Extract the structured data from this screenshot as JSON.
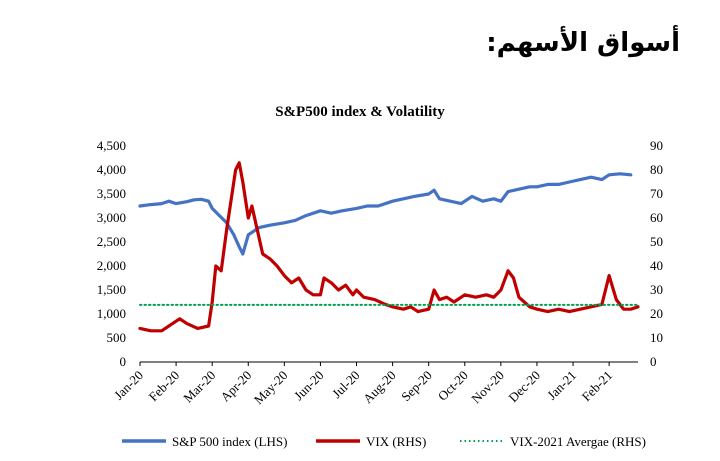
{
  "page": {
    "heading": "أسواق الأسهم:"
  },
  "chart_data": {
    "type": "line",
    "title": "S&P500 index & Volatility",
    "x_labels": [
      "Jan-20",
      "Feb-20",
      "Mar-20",
      "Apr-20",
      "May-20",
      "Jun-20",
      "Jul-20",
      "Aug-20",
      "Sep-20",
      "Oct-20",
      "Nov-20",
      "Dec-20",
      "Jan-21",
      "Feb-21"
    ],
    "y_left": {
      "label": "S&P 500 index (LHS)",
      "range": [
        0,
        4500
      ],
      "ticks": [
        "0",
        "500",
        "1,000",
        "1,500",
        "2,000",
        "2,500",
        "3,000",
        "3,500",
        "4,000",
        "4,500"
      ],
      "tick_values": [
        0,
        500,
        1000,
        1500,
        2000,
        2500,
        3000,
        3500,
        4000,
        4500
      ]
    },
    "y_right": {
      "label": "VIX (RHS)",
      "range": [
        0,
        90
      ],
      "ticks": [
        "0",
        "10",
        "20",
        "30",
        "40",
        "50",
        "60",
        "70",
        "80",
        "90"
      ],
      "tick_values": [
        0,
        10,
        20,
        30,
        40,
        50,
        60,
        70,
        80,
        90
      ]
    },
    "x_range": [
      0,
      13.8
    ],
    "series": [
      {
        "name": "S&P 500 index (LHS)",
        "axis": "left",
        "color": "#4472C4",
        "points": [
          [
            0,
            3250
          ],
          [
            0.3,
            3280
          ],
          [
            0.6,
            3300
          ],
          [
            0.8,
            3350
          ],
          [
            1.0,
            3300
          ],
          [
            1.3,
            3340
          ],
          [
            1.5,
            3380
          ],
          [
            1.7,
            3390
          ],
          [
            1.9,
            3350
          ],
          [
            2.0,
            3200
          ],
          [
            2.2,
            3050
          ],
          [
            2.4,
            2900
          ],
          [
            2.6,
            2650
          ],
          [
            2.75,
            2400
          ],
          [
            2.85,
            2250
          ],
          [
            3.0,
            2650
          ],
          [
            3.3,
            2800
          ],
          [
            3.6,
            2850
          ],
          [
            4.0,
            2900
          ],
          [
            4.3,
            2950
          ],
          [
            4.6,
            3050
          ],
          [
            5.0,
            3150
          ],
          [
            5.3,
            3100
          ],
          [
            5.6,
            3150
          ],
          [
            6.0,
            3200
          ],
          [
            6.3,
            3250
          ],
          [
            6.6,
            3250
          ],
          [
            7.0,
            3350
          ],
          [
            7.3,
            3400
          ],
          [
            7.6,
            3450
          ],
          [
            8.0,
            3500
          ],
          [
            8.15,
            3580
          ],
          [
            8.3,
            3400
          ],
          [
            8.6,
            3350
          ],
          [
            8.9,
            3300
          ],
          [
            9.2,
            3450
          ],
          [
            9.5,
            3350
          ],
          [
            9.8,
            3400
          ],
          [
            10.0,
            3350
          ],
          [
            10.2,
            3550
          ],
          [
            10.5,
            3600
          ],
          [
            10.8,
            3650
          ],
          [
            11.0,
            3650
          ],
          [
            11.3,
            3700
          ],
          [
            11.6,
            3700
          ],
          [
            11.9,
            3750
          ],
          [
            12.2,
            3800
          ],
          [
            12.5,
            3850
          ],
          [
            12.8,
            3800
          ],
          [
            13.0,
            3900
          ],
          [
            13.3,
            3920
          ],
          [
            13.6,
            3900
          ]
        ]
      },
      {
        "name": "VIX (RHS)",
        "axis": "right",
        "color": "#C00000",
        "points": [
          [
            0,
            14
          ],
          [
            0.3,
            13
          ],
          [
            0.6,
            13
          ],
          [
            0.9,
            16
          ],
          [
            1.1,
            18
          ],
          [
            1.3,
            16
          ],
          [
            1.6,
            14
          ],
          [
            1.9,
            15
          ],
          [
            2.0,
            25
          ],
          [
            2.1,
            40
          ],
          [
            2.25,
            38
          ],
          [
            2.4,
            55
          ],
          [
            2.55,
            70
          ],
          [
            2.65,
            80
          ],
          [
            2.75,
            83
          ],
          [
            2.85,
            75
          ],
          [
            3.0,
            60
          ],
          [
            3.1,
            65
          ],
          [
            3.25,
            55
          ],
          [
            3.4,
            45
          ],
          [
            3.6,
            43
          ],
          [
            3.8,
            40
          ],
          [
            4.0,
            36
          ],
          [
            4.2,
            33
          ],
          [
            4.4,
            35
          ],
          [
            4.6,
            30
          ],
          [
            4.8,
            28
          ],
          [
            5.0,
            28
          ],
          [
            5.1,
            35
          ],
          [
            5.3,
            33
          ],
          [
            5.5,
            30
          ],
          [
            5.7,
            32
          ],
          [
            5.9,
            28
          ],
          [
            6.0,
            30
          ],
          [
            6.2,
            27
          ],
          [
            6.5,
            26
          ],
          [
            6.8,
            24
          ],
          [
            7.0,
            23
          ],
          [
            7.3,
            22
          ],
          [
            7.5,
            23
          ],
          [
            7.7,
            21
          ],
          [
            8.0,
            22
          ],
          [
            8.15,
            30
          ],
          [
            8.3,
            26
          ],
          [
            8.5,
            27
          ],
          [
            8.7,
            25
          ],
          [
            9.0,
            28
          ],
          [
            9.3,
            27
          ],
          [
            9.6,
            28
          ],
          [
            9.8,
            27
          ],
          [
            10.0,
            30
          ],
          [
            10.2,
            38
          ],
          [
            10.35,
            35
          ],
          [
            10.5,
            27
          ],
          [
            10.8,
            23
          ],
          [
            11.0,
            22
          ],
          [
            11.3,
            21
          ],
          [
            11.6,
            22
          ],
          [
            11.9,
            21
          ],
          [
            12.2,
            22
          ],
          [
            12.5,
            23
          ],
          [
            12.8,
            24
          ],
          [
            13.0,
            36
          ],
          [
            13.1,
            31
          ],
          [
            13.2,
            26
          ],
          [
            13.4,
            22
          ],
          [
            13.6,
            22
          ],
          [
            13.8,
            23
          ]
        ]
      },
      {
        "name": "VIX-2021 Avergae (RHS)",
        "axis": "right",
        "color": "#00A050",
        "style": "dotted",
        "points": [
          [
            0,
            23.8
          ],
          [
            13.8,
            23.8
          ]
        ]
      }
    ],
    "legend": [
      "S&P 500 index (LHS)",
      "VIX (RHS)",
      "VIX-2021 Avergae (RHS)"
    ]
  }
}
